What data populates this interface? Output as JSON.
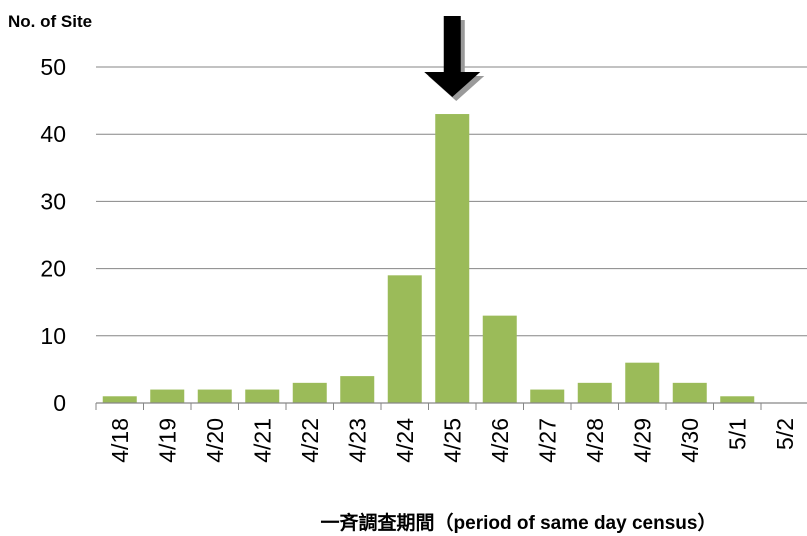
{
  "chart_data": {
    "type": "bar",
    "ylabel": "No. of Site",
    "xlabel": "一斉調査期間（period of same day census）",
    "categories": [
      "4/18",
      "4/19",
      "4/20",
      "4/21",
      "4/22",
      "4/23",
      "4/24",
      "4/25",
      "4/26",
      "4/27",
      "4/28",
      "4/29",
      "4/30",
      "5/1",
      "5/2"
    ],
    "values": [
      1,
      2,
      2,
      2,
      3,
      4,
      19,
      43,
      13,
      2,
      3,
      6,
      3,
      1,
      0
    ],
    "ylim": [
      0,
      50
    ],
    "yticks": [
      0,
      10,
      20,
      30,
      40,
      50
    ],
    "grid": true,
    "legend": "none",
    "annotation": {
      "type": "arrow",
      "category": "4/25"
    },
    "bar_color": "#9BBB59",
    "grid_color": "#868686"
  }
}
